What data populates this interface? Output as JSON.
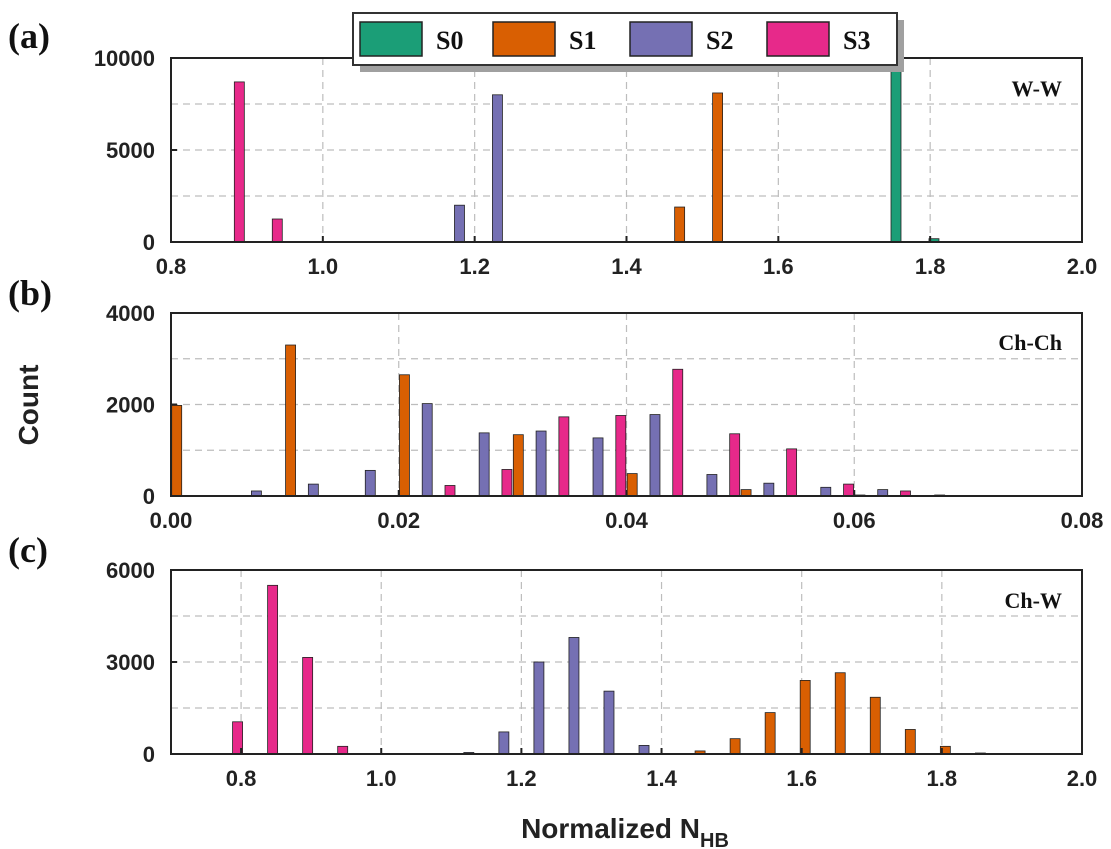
{
  "chart_data": [
    {
      "type": "bar",
      "panel_tag": "(a)",
      "title": "W-W",
      "xlim": [
        0.8,
        2.0
      ],
      "x_ticks": [
        "0.8",
        "1.0",
        "1.2",
        "1.4",
        "1.6",
        "1.8",
        "2.0"
      ],
      "ylim": [
        0,
        10000
      ],
      "y_ticks": [
        "0",
        "5000",
        "10000"
      ],
      "series": [
        {
          "name": "S0",
          "color": "#1b9e77",
          "x": [
            1.755,
            1.805
          ],
          "values": [
            10000,
            180
          ]
        },
        {
          "name": "S1",
          "color": "#d95f02",
          "x": [
            1.47,
            1.52
          ],
          "values": [
            1900,
            8100
          ]
        },
        {
          "name": "S2",
          "color": "#7570b3",
          "x": [
            1.18,
            1.23
          ],
          "values": [
            2000,
            8000
          ]
        },
        {
          "name": "S3",
          "color": "#e7298a",
          "x": [
            0.89,
            0.94
          ],
          "values": [
            8700,
            1250
          ]
        }
      ]
    },
    {
      "type": "bar",
      "panel_tag": "(b)",
      "title": "Ch-Ch",
      "xlim": [
        0.0,
        0.08
      ],
      "x_ticks": [
        "0.00",
        "0.02",
        "0.04",
        "0.06",
        "0.08"
      ],
      "ylim": [
        0,
        4000
      ],
      "y_ticks": [
        "0",
        "2000",
        "4000"
      ],
      "series": [
        {
          "name": "S0",
          "color": "#1b9e77",
          "x": [],
          "values": []
        },
        {
          "name": "S1",
          "color": "#d95f02",
          "x": [
            0.0005,
            0.0105,
            0.0205,
            0.0305,
            0.0405,
            0.0505,
            0.0605
          ],
          "values": [
            1980,
            3300,
            2650,
            1340,
            490,
            140,
            20
          ]
        },
        {
          "name": "S2",
          "color": "#7570b3",
          "x": [
            0.0075,
            0.0125,
            0.0175,
            0.0225,
            0.0275,
            0.0325,
            0.0375,
            0.0425,
            0.0475,
            0.0525,
            0.0575,
            0.0625,
            0.0675
          ],
          "values": [
            110,
            260,
            560,
            2020,
            1380,
            1420,
            1270,
            1780,
            470,
            280,
            190,
            140,
            20
          ]
        },
        {
          "name": "S3",
          "color": "#e7298a",
          "x": [
            0.0245,
            0.0295,
            0.0345,
            0.0395,
            0.0445,
            0.0495,
            0.0545,
            0.0595,
            0.0645
          ],
          "values": [
            230,
            580,
            1730,
            1760,
            2770,
            1360,
            1030,
            260,
            110
          ]
        }
      ]
    },
    {
      "type": "bar",
      "panel_tag": "(c)",
      "title": "Ch-W",
      "xlim": [
        0.7,
        2.0
      ],
      "x_ticks": [
        "0.8",
        "1.0",
        "1.2",
        "1.4",
        "1.6",
        "1.8",
        "2.0"
      ],
      "ylim": [
        0,
        6000
      ],
      "y_ticks": [
        "0",
        "3000",
        "6000"
      ],
      "series": [
        {
          "name": "S0",
          "color": "#1b9e77",
          "x": [],
          "values": []
        },
        {
          "name": "S1",
          "color": "#d95f02",
          "x": [
            1.455,
            1.505,
            1.555,
            1.605,
            1.655,
            1.705,
            1.755,
            1.805,
            1.855
          ],
          "values": [
            100,
            500,
            1350,
            2400,
            2650,
            1850,
            800,
            250,
            20
          ]
        },
        {
          "name": "S2",
          "color": "#7570b3",
          "x": [
            1.125,
            1.175,
            1.225,
            1.275,
            1.325,
            1.375
          ],
          "values": [
            50,
            720,
            3000,
            3800,
            2050,
            280
          ]
        },
        {
          "name": "S3",
          "color": "#e7298a",
          "x": [
            0.795,
            0.845,
            0.895,
            0.945
          ],
          "values": [
            1050,
            5500,
            3150,
            250
          ]
        }
      ]
    }
  ],
  "y_label": "Count",
  "x_label": "Normalized N",
  "x_label_sub": "HB",
  "legend": {
    "position": "top-center",
    "items": [
      {
        "label": "S0",
        "color": "#1b9e77"
      },
      {
        "label": "S1",
        "color": "#d95f02"
      },
      {
        "label": "S2",
        "color": "#7570b3"
      },
      {
        "label": "S3",
        "color": "#e7298a"
      }
    ]
  }
}
